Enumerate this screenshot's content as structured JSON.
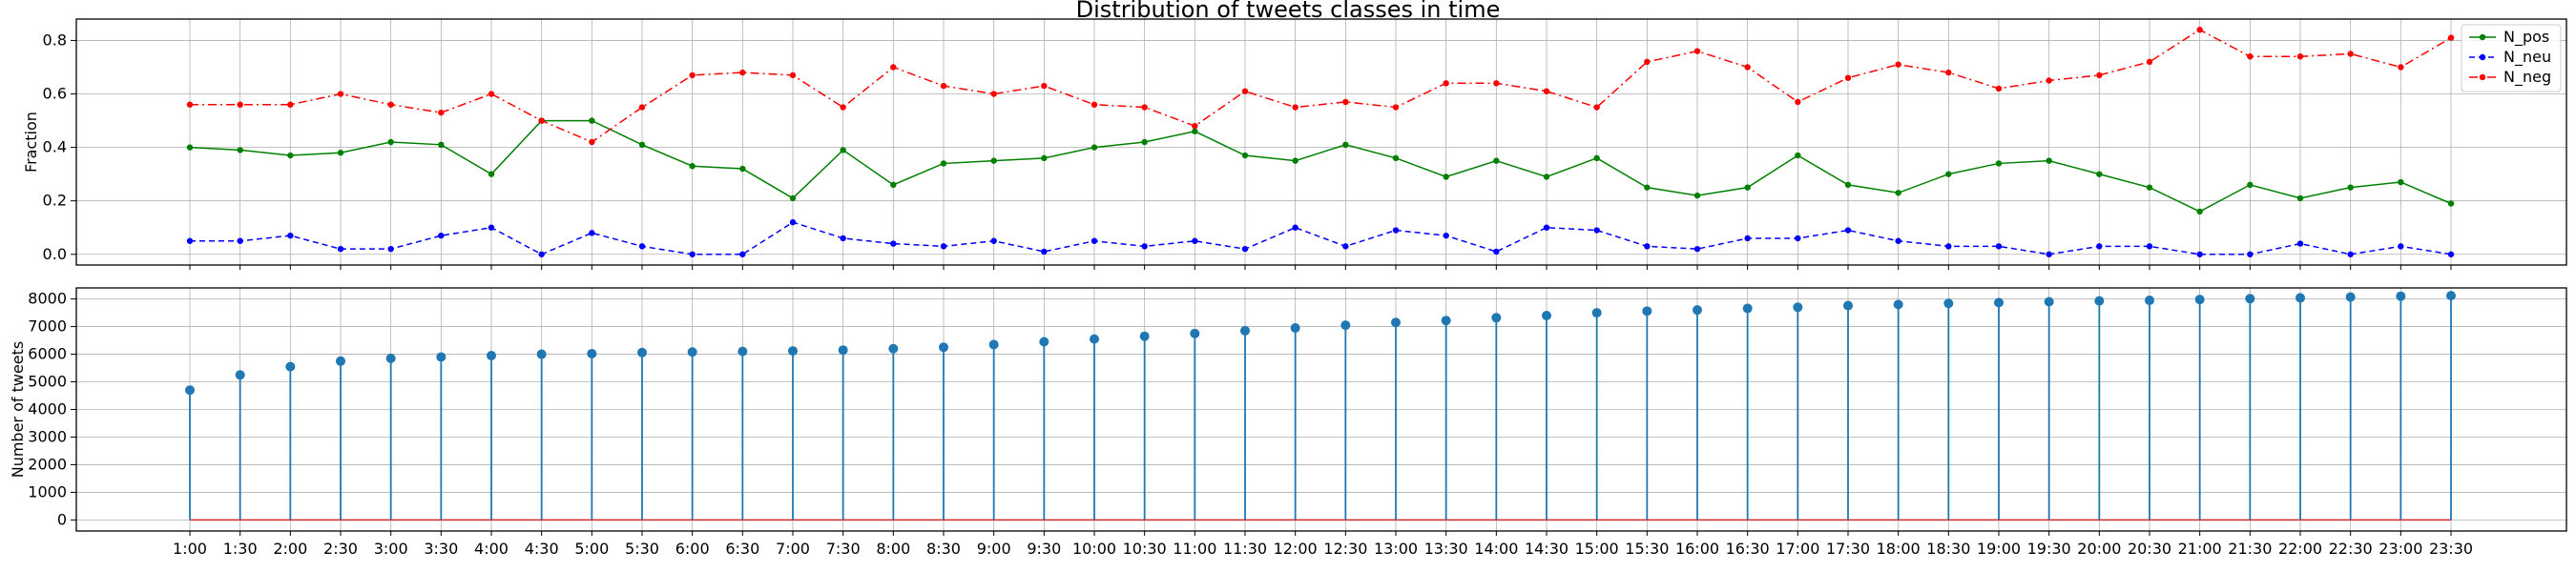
{
  "chart_data": [
    {
      "type": "line",
      "title": "Distribution of tweets classes in time",
      "xlabel": "",
      "ylabel": "Fraction",
      "ylim": [
        -0.04,
        0.88
      ],
      "yticks": [
        "0.0",
        "0.2",
        "0.4",
        "0.6",
        "0.8"
      ],
      "grid": true,
      "legend_position": "top-right",
      "x": [
        "1:00",
        "1:30",
        "2:00",
        "2:30",
        "3:00",
        "3:30",
        "4:00",
        "4:30",
        "5:00",
        "5:30",
        "6:00",
        "6:30",
        "7:00",
        "7:30",
        "8:00",
        "8:30",
        "9:00",
        "9:30",
        "10:00",
        "10:30",
        "11:00",
        "11:30",
        "12:00",
        "12:30",
        "13:00",
        "13:30",
        "14:00",
        "14:30",
        "15:00",
        "15:30",
        "16:00",
        "16:30",
        "17:00",
        "17:30",
        "18:00",
        "18:30",
        "19:00",
        "19:30",
        "20:00",
        "20:30",
        "21:00",
        "21:30",
        "22:00",
        "22:30",
        "23:00",
        "23:30"
      ],
      "series": [
        {
          "name": "N_pos",
          "color": "#008000",
          "dash": "solid",
          "values": [
            0.4,
            0.39,
            0.37,
            0.38,
            0.42,
            0.41,
            0.3,
            0.5,
            0.5,
            0.41,
            0.33,
            0.32,
            0.21,
            0.39,
            0.26,
            0.34,
            0.35,
            0.36,
            0.4,
            0.42,
            0.46,
            0.37,
            0.35,
            0.41,
            0.36,
            0.29,
            0.35,
            0.29,
            0.36,
            0.25,
            0.22,
            0.25,
            0.37,
            0.26,
            0.23,
            0.3,
            0.34,
            0.35,
            0.3,
            0.25,
            0.16,
            0.26,
            0.21,
            0.25,
            0.27,
            0.19
          ]
        },
        {
          "name": "N_neu",
          "color": "#0000ff",
          "dash": "dashed",
          "values": [
            0.05,
            0.05,
            0.07,
            0.02,
            0.02,
            0.07,
            0.1,
            0.0,
            0.08,
            0.03,
            0.0,
            0.0,
            0.12,
            0.06,
            0.04,
            0.03,
            0.05,
            0.01,
            0.05,
            0.03,
            0.05,
            0.02,
            0.1,
            0.03,
            0.09,
            0.07,
            0.01,
            0.1,
            0.09,
            0.03,
            0.02,
            0.06,
            0.06,
            0.09,
            0.05,
            0.03,
            0.03,
            0.0,
            0.03,
            0.03,
            0.0,
            0.0,
            0.04,
            0.0,
            0.03,
            0.0
          ]
        },
        {
          "name": "N_neg",
          "color": "#ff0000",
          "dash": "dashdot",
          "values": [
            0.56,
            0.56,
            0.56,
            0.6,
            0.56,
            0.53,
            0.6,
            0.5,
            0.42,
            0.55,
            0.67,
            0.68,
            0.67,
            0.55,
            0.7,
            0.63,
            0.6,
            0.63,
            0.56,
            0.55,
            0.48,
            0.61,
            0.55,
            0.57,
            0.55,
            0.64,
            0.64,
            0.61,
            0.55,
            0.72,
            0.76,
            0.7,
            0.57,
            0.66,
            0.71,
            0.68,
            0.62,
            0.65,
            0.67,
            0.72,
            0.84,
            0.74,
            0.74,
            0.75,
            0.7,
            0.81
          ]
        }
      ]
    },
    {
      "type": "stem",
      "title": "",
      "xlabel": "",
      "ylabel": "Number of tweets",
      "ylim": [
        -400,
        8400
      ],
      "yticks": [
        "0",
        "1000",
        "2000",
        "3000",
        "4000",
        "5000",
        "6000",
        "7000",
        "8000"
      ],
      "grid": true,
      "color": "#1f77b4",
      "x": [
        "1:00",
        "1:30",
        "2:00",
        "2:30",
        "3:00",
        "3:30",
        "4:00",
        "4:30",
        "5:00",
        "5:30",
        "6:00",
        "6:30",
        "7:00",
        "7:30",
        "8:00",
        "8:30",
        "9:00",
        "9:30",
        "10:00",
        "10:30",
        "11:00",
        "11:30",
        "12:00",
        "12:30",
        "13:00",
        "13:30",
        "14:00",
        "14:30",
        "15:00",
        "15:30",
        "16:00",
        "16:30",
        "17:00",
        "17:30",
        "18:00",
        "18:30",
        "19:00",
        "19:30",
        "20:00",
        "20:30",
        "21:00",
        "21:30",
        "22:00",
        "22:30",
        "23:00",
        "23:30"
      ],
      "values": [
        4700,
        5250,
        5550,
        5750,
        5850,
        5900,
        5950,
        6000,
        6020,
        6060,
        6080,
        6100,
        6120,
        6150,
        6200,
        6250,
        6350,
        6450,
        6550,
        6650,
        6750,
        6850,
        6950,
        7050,
        7150,
        7220,
        7320,
        7400,
        7500,
        7560,
        7600,
        7660,
        7700,
        7760,
        7800,
        7840,
        7870,
        7900,
        7930,
        7950,
        7980,
        8010,
        8040,
        8070,
        8100,
        8120
      ]
    }
  ]
}
